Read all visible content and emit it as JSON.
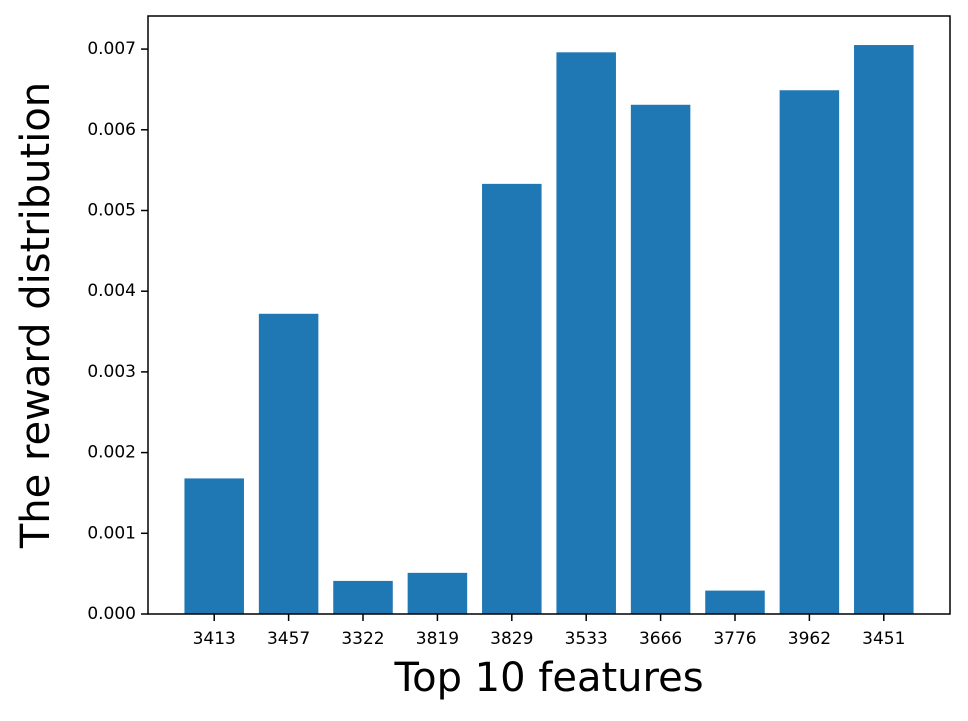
{
  "chart_data": {
    "type": "bar",
    "x_label": "Top 10 features",
    "y_label": "The reward distribution",
    "categories": [
      "3413",
      "3457",
      "3322",
      "3819",
      "3829",
      "3533",
      "3666",
      "3776",
      "3962",
      "3451"
    ],
    "values": [
      0.00168,
      0.00372,
      0.00041,
      0.00051,
      0.00533,
      0.00696,
      0.00631,
      0.00029,
      0.00649,
      0.00705
    ],
    "color": "#1f77b4",
    "ylim": [
      0,
      0.00741
    ],
    "yticks": [
      {
        "value": 0,
        "label": "0.000"
      },
      {
        "value": 0.001,
        "label": "0.001"
      },
      {
        "value": 0.002,
        "label": "0.002"
      },
      {
        "value": 0.003,
        "label": "0.003"
      },
      {
        "value": 0.004,
        "label": "0.004"
      },
      {
        "value": 0.005,
        "label": "0.005"
      },
      {
        "value": 0.006,
        "label": "0.006"
      },
      {
        "value": 0.007,
        "label": "0.007"
      }
    ]
  }
}
